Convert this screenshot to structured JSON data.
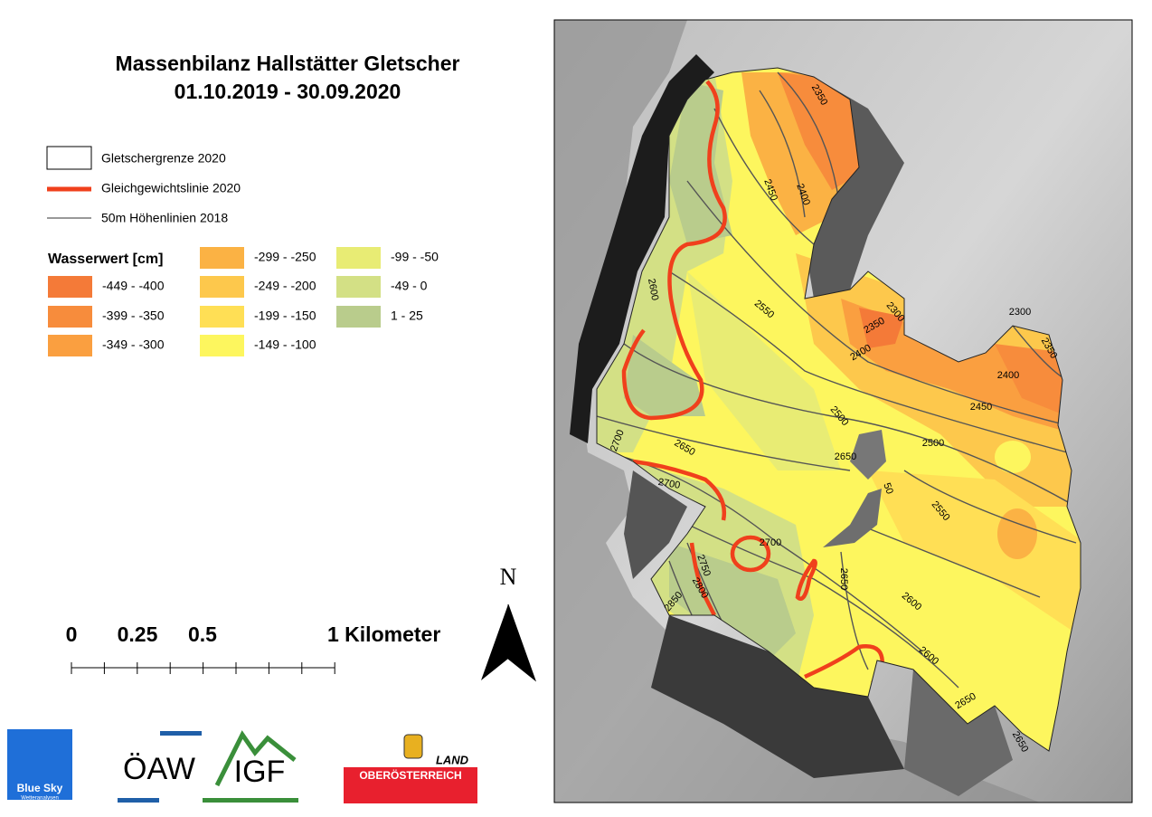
{
  "title": [
    "Massenbilanz Hallstätter Gletscher",
    "01.10.2019 - 30.09.2020"
  ],
  "legend": {
    "lines": [
      "Gletschergrenze 2020",
      "Gleichgewichtslinie 2020",
      "50m Höhenlinien 2018"
    ],
    "classes_title": "Wasserwert [cm]",
    "classes": [
      {
        "label": "-449 - -400",
        "color": "#f47a38"
      },
      {
        "label": "-399 - -350",
        "color": "#f78c3c"
      },
      {
        "label": "-349 - -300",
        "color": "#fa9f40"
      },
      {
        "label": "-299 - -250",
        "color": "#fbb244"
      },
      {
        "label": "-249 - -200",
        "color": "#fdc84c"
      },
      {
        "label": "-199 - -150",
        "color": "#ffdf55"
      },
      {
        "label": "-149 - -100",
        "color": "#fdf65e"
      },
      {
        "label": "-99 - -50",
        "color": "#e8ec74"
      },
      {
        "label": "-49 - 0",
        "color": "#d3e085"
      },
      {
        "label": "1 - 25",
        "color": "#b9cc8c"
      }
    ]
  },
  "scale_bar": [
    "0",
    "0.25",
    "0.5",
    "1 Kilometer"
  ],
  "north": "N",
  "logos": {
    "blue_sky": "Blue Sky",
    "blue_sky_sub": "Wetteranalysen",
    "oeaw": "ÖAW",
    "igf": "IGF",
    "land": "LAND",
    "ooe": "OBERÖSTERREICH"
  },
  "contour_labels": [
    "2350",
    "2400",
    "2450",
    "2600",
    "2550",
    "2350",
    "2300",
    "2400",
    "2300",
    "2350",
    "2400",
    "2450",
    "2500",
    "2500",
    "2650",
    "2700",
    "2650",
    "50",
    "2700",
    "2550",
    "2700",
    "2750",
    "2800",
    "2850",
    "2650",
    "2600",
    "2600",
    "2650",
    "2650"
  ]
}
